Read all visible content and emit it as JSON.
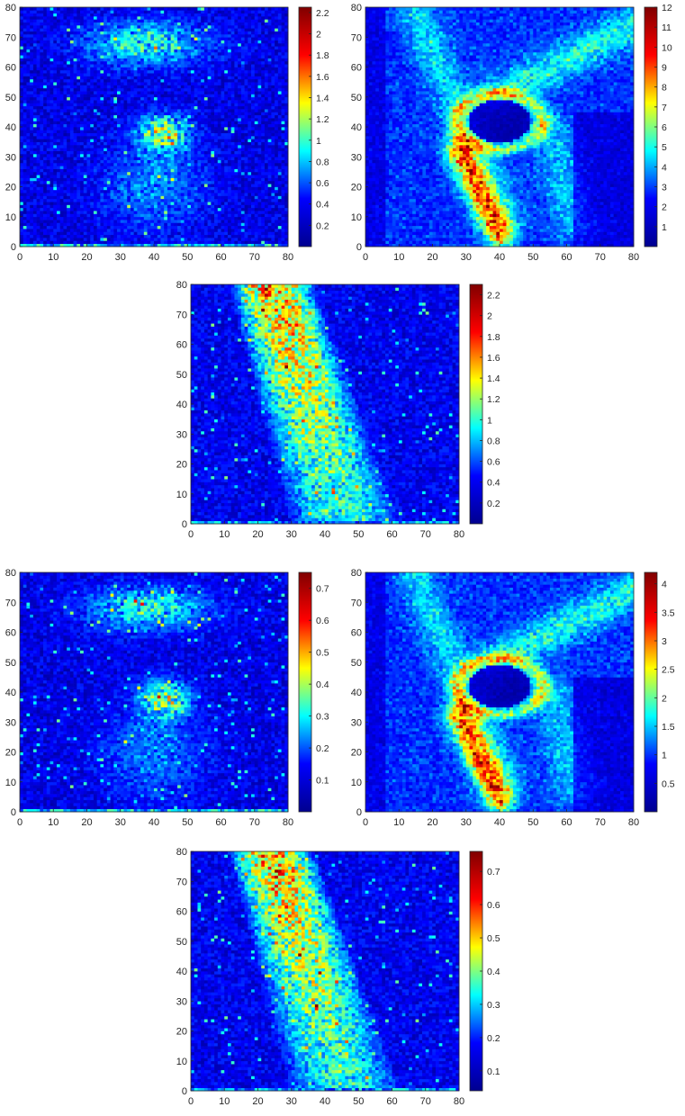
{
  "figure": {
    "colormap": "jet",
    "colormap_stops": [
      "#00008f",
      "#0000ff",
      "#00ffff",
      "#ffff00",
      "#ff0000",
      "#800000"
    ]
  },
  "chart_data": [
    {
      "id": "panel-1",
      "type": "heatmap",
      "title": "",
      "xlabel": "",
      "ylabel": "",
      "xlim": [
        0,
        80
      ],
      "ylim": [
        0,
        80
      ],
      "x_ticks": [
        "0",
        "10",
        "20",
        "30",
        "40",
        "50",
        "60",
        "70",
        "80"
      ],
      "y_ticks": [
        "0",
        "10",
        "20",
        "30",
        "40",
        "50",
        "60",
        "70",
        "80"
      ],
      "grid": false,
      "clim": [
        0,
        2.25
      ],
      "colorbar_ticks": [
        "0.2",
        "0.4",
        "0.6",
        "0.8",
        "1",
        "1.2",
        "1.4",
        "1.6",
        "1.8",
        "2",
        "2.2"
      ],
      "pattern": "noise_blob",
      "features": [
        {
          "shape": "blob",
          "center": [
            38,
            68
          ],
          "size": [
            24,
            10
          ],
          "peak": 0.9
        },
        {
          "shape": "blob",
          "center": [
            43,
            38
          ],
          "size": [
            10,
            8
          ],
          "peak": 1.3
        },
        {
          "shape": "blob",
          "center": [
            40,
            20
          ],
          "size": [
            20,
            20
          ],
          "peak": 0.45
        }
      ]
    },
    {
      "id": "panel-2",
      "type": "heatmap",
      "title": "",
      "xlabel": "",
      "ylabel": "",
      "xlim": [
        0,
        80
      ],
      "ylim": [
        0,
        80
      ],
      "x_ticks": [
        "0",
        "10",
        "20",
        "30",
        "40",
        "50",
        "60",
        "70",
        "80"
      ],
      "y_ticks": [
        "0",
        "10",
        "20",
        "30",
        "40",
        "50",
        "60",
        "70",
        "80"
      ],
      "grid": false,
      "clim": [
        0,
        12
      ],
      "colorbar_ticks": [
        "1",
        "2",
        "3",
        "4",
        "5",
        "6",
        "7",
        "8",
        "9",
        "10",
        "11",
        "12"
      ],
      "pattern": "anatomy"
    },
    {
      "id": "panel-3",
      "type": "heatmap",
      "title": "",
      "xlabel": "",
      "ylabel": "",
      "xlim": [
        0,
        80
      ],
      "ylim": [
        0,
        80
      ],
      "x_ticks": [
        "0",
        "10",
        "20",
        "30",
        "40",
        "50",
        "60",
        "70",
        "80"
      ],
      "y_ticks": [
        "0",
        "10",
        "20",
        "30",
        "40",
        "50",
        "60",
        "70",
        "80"
      ],
      "grid": false,
      "clim": [
        0,
        2.3
      ],
      "colorbar_ticks": [
        "0.2",
        "0.4",
        "0.6",
        "0.8",
        "1",
        "1.2",
        "1.4",
        "1.6",
        "1.8",
        "2",
        "2.2"
      ],
      "pattern": "band"
    },
    {
      "id": "panel-4",
      "type": "heatmap",
      "title": "",
      "xlabel": "",
      "ylabel": "",
      "xlim": [
        0,
        80
      ],
      "ylim": [
        0,
        80
      ],
      "x_ticks": [
        "0",
        "10",
        "20",
        "30",
        "40",
        "50",
        "60",
        "70",
        "80"
      ],
      "y_ticks": [
        "0",
        "10",
        "20",
        "30",
        "40",
        "50",
        "60",
        "70",
        "80"
      ],
      "grid": false,
      "clim": [
        0,
        0.75
      ],
      "colorbar_ticks": [
        "0.1",
        "0.2",
        "0.3",
        "0.4",
        "0.5",
        "0.6",
        "0.7"
      ],
      "pattern": "noise_blob",
      "features": [
        {
          "shape": "blob",
          "center": [
            38,
            68
          ],
          "size": [
            24,
            10
          ],
          "peak": 0.3
        },
        {
          "shape": "blob",
          "center": [
            43,
            38
          ],
          "size": [
            10,
            8
          ],
          "peak": 0.42
        },
        {
          "shape": "blob",
          "center": [
            40,
            20
          ],
          "size": [
            20,
            20
          ],
          "peak": 0.15
        }
      ]
    },
    {
      "id": "panel-5",
      "type": "heatmap",
      "title": "",
      "xlabel": "",
      "ylabel": "",
      "xlim": [
        0,
        80
      ],
      "ylim": [
        0,
        80
      ],
      "x_ticks": [
        "0",
        "10",
        "20",
        "30",
        "40",
        "50",
        "60",
        "70",
        "80"
      ],
      "y_ticks": [
        "0",
        "10",
        "20",
        "30",
        "40",
        "50",
        "60",
        "70",
        "80"
      ],
      "grid": false,
      "clim": [
        0,
        4.2
      ],
      "colorbar_ticks": [
        "0.5",
        "1",
        "1.5",
        "2",
        "2.5",
        "3",
        "3.5",
        "4"
      ],
      "pattern": "anatomy"
    },
    {
      "id": "panel-6",
      "type": "heatmap",
      "title": "",
      "xlabel": "",
      "ylabel": "",
      "xlim": [
        0,
        80
      ],
      "ylim": [
        0,
        80
      ],
      "x_ticks": [
        "0",
        "10",
        "20",
        "30",
        "40",
        "50",
        "60",
        "70",
        "80"
      ],
      "y_ticks": [
        "0",
        "10",
        "20",
        "30",
        "40",
        "50",
        "60",
        "70",
        "80"
      ],
      "grid": false,
      "clim": [
        0.04,
        0.76
      ],
      "colorbar_ticks": [
        "0.1",
        "0.2",
        "0.3",
        "0.4",
        "0.5",
        "0.6",
        "0.7"
      ],
      "pattern": "band"
    }
  ]
}
